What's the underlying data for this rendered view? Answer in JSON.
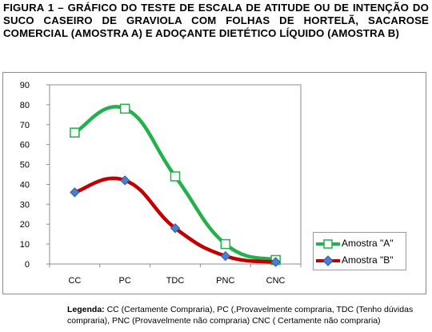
{
  "caption": "FIGURA 1 – GRÁFICO DO TESTE DE ESCALA DE ATITUDE OU DE INTENÇÃO DO SUCO CASEIRO DE GRAVIOLA COM FOLHAS DE HORTELÃ, SACAROSE COMERCIAL (AMOSTRA A) E ADOÇANTE DIETÉTICO LÍQUIDO (AMOSTRA B)",
  "chart_data": {
    "type": "line",
    "smooth": true,
    "categories": [
      "CC",
      "PC",
      "TDC",
      "PNC",
      "CNC"
    ],
    "ylim": [
      0,
      90
    ],
    "yticks": [
      0,
      10,
      20,
      30,
      40,
      50,
      60,
      70,
      80,
      90
    ],
    "grid": false,
    "legend": "right",
    "series": [
      {
        "name": "Amostra \"A\"",
        "color": "#22b14c",
        "marker": "square-open",
        "values": [
          66,
          78,
          44,
          10,
          2
        ]
      },
      {
        "name": "Amostra \"B\"",
        "color": "#c00000",
        "marker": "diamond-blue",
        "markerColor": "#4a7ed0",
        "values": [
          36,
          42,
          18,
          4,
          1
        ]
      }
    ]
  },
  "note": {
    "label": "Legenda:",
    "text": " CC (Certamente Compraria), PC (,Provavelmente compraria, TDC (Tenho dúvidas compraria), PNC  (Provavelmente não compraria) CNC ( Certamente não compraria)"
  }
}
